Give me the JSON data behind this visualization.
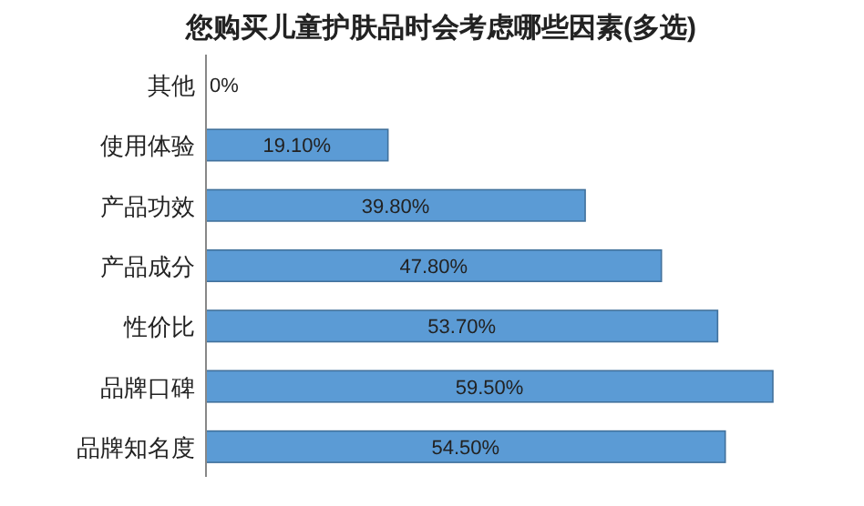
{
  "chart_data": {
    "type": "bar",
    "orientation": "horizontal",
    "title": "您购买儿童护肤品时会考虑哪些因素(多选)",
    "categories": [
      "其他",
      "使用体验",
      "产品功效",
      "产品成分",
      "性价比",
      "品牌口碑",
      "品牌知名度"
    ],
    "values": [
      0,
      19.1,
      39.8,
      47.8,
      53.7,
      59.5,
      54.5
    ],
    "value_labels": [
      "0%",
      "19.10%",
      "39.80%",
      "47.80%",
      "53.70%",
      "59.50%",
      "54.50%"
    ],
    "color": "#5b9bd5"
  }
}
